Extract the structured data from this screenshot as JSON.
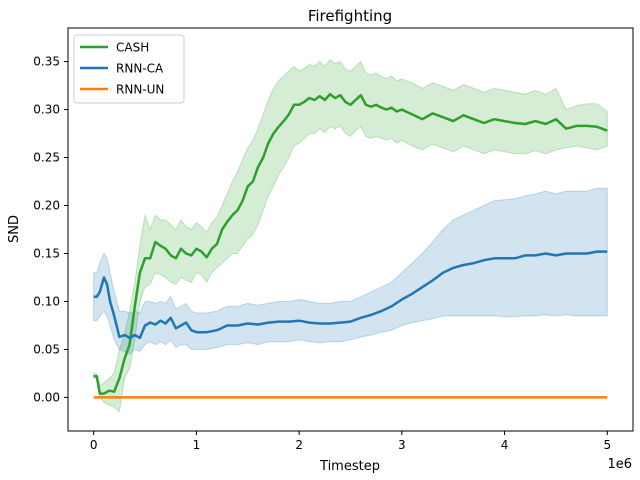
{
  "chart_data": {
    "type": "line",
    "title": "Firefighting",
    "xlabel": "Timestep",
    "ylabel": "SND",
    "x_offset_label": "1e6",
    "xlim": [
      -0.25,
      5.25
    ],
    "ylim": [
      -0.035,
      0.385
    ],
    "x_ticks": [
      0,
      1,
      2,
      3,
      4,
      5
    ],
    "x_tick_labels": [
      "0",
      "1",
      "2",
      "3",
      "4",
      "5"
    ],
    "y_ticks": [
      0.0,
      0.05,
      0.1,
      0.15,
      0.2,
      0.25,
      0.3,
      0.35
    ],
    "y_tick_labels": [
      "0.00",
      "0.05",
      "0.10",
      "0.15",
      "0.20",
      "0.25",
      "0.30",
      "0.35"
    ],
    "grid": false,
    "legend_position": "top-left",
    "series": [
      {
        "name": "CASH",
        "color": "#2ca02c",
        "x": [
          0,
          0.03,
          0.06,
          0.1,
          0.15,
          0.2,
          0.25,
          0.3,
          0.35,
          0.4,
          0.45,
          0.5,
          0.55,
          0.6,
          0.65,
          0.7,
          0.75,
          0.8,
          0.85,
          0.9,
          0.95,
          1.0,
          1.05,
          1.1,
          1.15,
          1.2,
          1.25,
          1.3,
          1.35,
          1.4,
          1.45,
          1.5,
          1.55,
          1.6,
          1.65,
          1.7,
          1.75,
          1.8,
          1.85,
          1.9,
          1.95,
          2.0,
          2.05,
          2.1,
          2.15,
          2.2,
          2.25,
          2.3,
          2.35,
          2.4,
          2.45,
          2.5,
          2.55,
          2.6,
          2.65,
          2.7,
          2.75,
          2.8,
          2.85,
          2.9,
          2.95,
          3.0,
          3.1,
          3.2,
          3.3,
          3.4,
          3.5,
          3.6,
          3.7,
          3.8,
          3.9,
          4.0,
          4.1,
          4.2,
          4.3,
          4.4,
          4.5,
          4.6,
          4.7,
          4.8,
          4.9,
          5.0
        ],
        "values": [
          0.022,
          0.022,
          0.004,
          0.004,
          0.007,
          0.006,
          0.02,
          0.04,
          0.055,
          0.095,
          0.13,
          0.145,
          0.145,
          0.162,
          0.158,
          0.155,
          0.148,
          0.145,
          0.155,
          0.15,
          0.148,
          0.155,
          0.152,
          0.146,
          0.155,
          0.16,
          0.175,
          0.183,
          0.19,
          0.195,
          0.205,
          0.22,
          0.225,
          0.24,
          0.25,
          0.265,
          0.275,
          0.282,
          0.288,
          0.295,
          0.305,
          0.305,
          0.308,
          0.312,
          0.31,
          0.314,
          0.31,
          0.316,
          0.312,
          0.315,
          0.308,
          0.305,
          0.31,
          0.315,
          0.305,
          0.303,
          0.305,
          0.302,
          0.3,
          0.302,
          0.298,
          0.3,
          0.295,
          0.29,
          0.296,
          0.292,
          0.288,
          0.294,
          0.29,
          0.286,
          0.29,
          0.288,
          0.286,
          0.285,
          0.288,
          0.285,
          0.29,
          0.28,
          0.283,
          0.283,
          0.282,
          0.278
        ],
        "lower": [
          0.02,
          0.02,
          0.0,
          -0.005,
          -0.008,
          -0.01,
          -0.015,
          0.02,
          0.03,
          0.06,
          0.1,
          0.115,
          0.118,
          0.13,
          0.128,
          0.125,
          0.12,
          0.118,
          0.125,
          0.122,
          0.12,
          0.13,
          0.128,
          0.12,
          0.13,
          0.135,
          0.14,
          0.145,
          0.15,
          0.15,
          0.158,
          0.165,
          0.17,
          0.18,
          0.195,
          0.21,
          0.22,
          0.232,
          0.24,
          0.25,
          0.262,
          0.265,
          0.27,
          0.275,
          0.275,
          0.28,
          0.276,
          0.282,
          0.28,
          0.283,
          0.275,
          0.272,
          0.278,
          0.282,
          0.272,
          0.27,
          0.272,
          0.27,
          0.268,
          0.27,
          0.265,
          0.268,
          0.262,
          0.258,
          0.264,
          0.26,
          0.256,
          0.262,
          0.258,
          0.254,
          0.258,
          0.256,
          0.254,
          0.254,
          0.257,
          0.254,
          0.258,
          0.26,
          0.262,
          0.26,
          0.258,
          0.262
        ],
        "upper": [
          0.025,
          0.025,
          0.012,
          0.015,
          0.02,
          0.025,
          0.05,
          0.065,
          0.09,
          0.12,
          0.158,
          0.19,
          0.175,
          0.19,
          0.185,
          0.185,
          0.18,
          0.175,
          0.185,
          0.178,
          0.175,
          0.182,
          0.178,
          0.172,
          0.182,
          0.188,
          0.2,
          0.212,
          0.225,
          0.235,
          0.248,
          0.26,
          0.268,
          0.28,
          0.295,
          0.31,
          0.322,
          0.33,
          0.335,
          0.34,
          0.345,
          0.34,
          0.343,
          0.347,
          0.345,
          0.35,
          0.345,
          0.352,
          0.348,
          0.35,
          0.342,
          0.34,
          0.345,
          0.35,
          0.338,
          0.336,
          0.338,
          0.335,
          0.332,
          0.335,
          0.33,
          0.332,
          0.328,
          0.322,
          0.328,
          0.324,
          0.32,
          0.326,
          0.322,
          0.318,
          0.322,
          0.32,
          0.318,
          0.316,
          0.32,
          0.316,
          0.322,
          0.3,
          0.304,
          0.306,
          0.306,
          0.298
        ]
      },
      {
        "name": "RNN-CA",
        "color": "#1f77b4",
        "x": [
          0,
          0.03,
          0.06,
          0.1,
          0.13,
          0.16,
          0.2,
          0.25,
          0.3,
          0.35,
          0.4,
          0.45,
          0.5,
          0.55,
          0.6,
          0.65,
          0.7,
          0.75,
          0.8,
          0.85,
          0.9,
          0.95,
          1.0,
          1.1,
          1.2,
          1.3,
          1.4,
          1.5,
          1.6,
          1.7,
          1.8,
          1.9,
          2.0,
          2.1,
          2.2,
          2.3,
          2.4,
          2.5,
          2.6,
          2.7,
          2.8,
          2.9,
          3.0,
          3.1,
          3.2,
          3.3,
          3.4,
          3.5,
          3.6,
          3.7,
          3.8,
          3.9,
          4.0,
          4.1,
          4.2,
          4.3,
          4.4,
          4.5,
          4.6,
          4.7,
          4.8,
          4.9,
          5.0
        ],
        "values": [
          0.105,
          0.105,
          0.11,
          0.125,
          0.118,
          0.1,
          0.085,
          0.063,
          0.065,
          0.062,
          0.065,
          0.062,
          0.075,
          0.078,
          0.076,
          0.08,
          0.077,
          0.083,
          0.072,
          0.075,
          0.078,
          0.07,
          0.068,
          0.068,
          0.07,
          0.075,
          0.075,
          0.077,
          0.076,
          0.078,
          0.079,
          0.079,
          0.08,
          0.078,
          0.077,
          0.077,
          0.078,
          0.079,
          0.083,
          0.086,
          0.09,
          0.095,
          0.102,
          0.108,
          0.115,
          0.122,
          0.13,
          0.135,
          0.138,
          0.14,
          0.143,
          0.145,
          0.145,
          0.145,
          0.148,
          0.148,
          0.15,
          0.148,
          0.15,
          0.15,
          0.15,
          0.152,
          0.152
        ],
        "lower": [
          0.08,
          0.08,
          0.085,
          0.09,
          0.085,
          0.075,
          0.06,
          0.05,
          0.048,
          0.045,
          0.05,
          0.048,
          0.055,
          0.058,
          0.055,
          0.058,
          0.055,
          0.06,
          0.052,
          0.055,
          0.055,
          0.05,
          0.05,
          0.05,
          0.052,
          0.055,
          0.055,
          0.057,
          0.055,
          0.058,
          0.058,
          0.058,
          0.06,
          0.058,
          0.057,
          0.058,
          0.058,
          0.06,
          0.063,
          0.065,
          0.068,
          0.07,
          0.075,
          0.078,
          0.08,
          0.082,
          0.085,
          0.085,
          0.085,
          0.085,
          0.085,
          0.085,
          0.084,
          0.084,
          0.085,
          0.085,
          0.086,
          0.085,
          0.086,
          0.085,
          0.085,
          0.085,
          0.085
        ],
        "upper": [
          0.13,
          0.13,
          0.14,
          0.15,
          0.145,
          0.13,
          0.11,
          0.09,
          0.09,
          0.088,
          0.09,
          0.088,
          0.1,
          0.1,
          0.098,
          0.1,
          0.098,
          0.105,
          0.092,
          0.095,
          0.098,
          0.09,
          0.088,
          0.088,
          0.09,
          0.095,
          0.095,
          0.098,
          0.096,
          0.098,
          0.1,
          0.1,
          0.102,
          0.1,
          0.098,
          0.098,
          0.1,
          0.1,
          0.105,
          0.11,
          0.115,
          0.12,
          0.13,
          0.14,
          0.15,
          0.162,
          0.175,
          0.185,
          0.19,
          0.195,
          0.2,
          0.205,
          0.206,
          0.207,
          0.21,
          0.212,
          0.215,
          0.212,
          0.215,
          0.215,
          0.215,
          0.218,
          0.218
        ]
      },
      {
        "name": "RNN-UN",
        "color": "#ff7f0e",
        "x": [
          0,
          1,
          2,
          3,
          4,
          5
        ],
        "values": [
          0,
          0,
          0,
          0,
          0,
          0
        ]
      }
    ]
  }
}
